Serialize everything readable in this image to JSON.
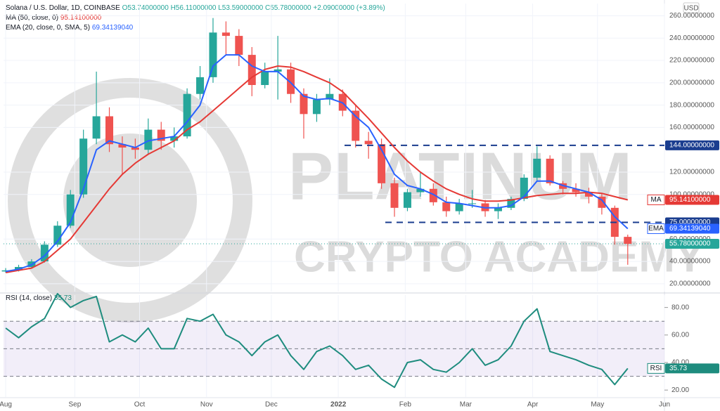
{
  "header": {
    "symbol": "Solana / U.S. Dollar, 1D, COINBASE",
    "ohlc": [
      "O53.74000000",
      "H56.11000000",
      "L53.59000000",
      "C55.78000000"
    ],
    "change": "+2.09000000 (+3.89%)",
    "currency": "USD"
  },
  "watermark": [
    "PLATINUM",
    "CRYPTO ACADEMY"
  ],
  "chart_data": [
    {
      "type": "candlestick",
      "x": [
        0,
        6,
        12,
        18,
        24,
        30,
        36,
        42,
        48,
        54,
        60,
        66,
        72,
        78,
        84,
        90,
        96,
        102,
        108,
        114,
        120,
        126,
        132,
        138,
        144,
        150,
        156,
        162,
        168,
        174,
        180,
        186,
        192,
        198,
        204,
        210,
        216,
        222,
        228,
        234,
        240,
        246,
        252,
        258,
        264,
        270,
        276,
        282,
        288
      ],
      "open": [
        31,
        32,
        35,
        40,
        55,
        72,
        100,
        150,
        170,
        145,
        142,
        140,
        158,
        148,
        152,
        190,
        205,
        245,
        242,
        225,
        198,
        210,
        212,
        190,
        172,
        185,
        190,
        175,
        148,
        145,
        110,
        88,
        102,
        105,
        93,
        85,
        92,
        92,
        85,
        88,
        96,
        115,
        132,
        110,
        105,
        102,
        98,
        88,
        62
      ],
      "high": [
        34,
        37,
        42,
        58,
        76,
        104,
        158,
        210,
        178,
        152,
        150,
        168,
        165,
        160,
        195,
        215,
        258,
        255,
        248,
        232,
        218,
        242,
        218,
        195,
        190,
        204,
        194,
        180,
        156,
        150,
        115,
        105,
        120,
        110,
        98,
        96,
        104,
        95,
        92,
        98,
        118,
        143,
        135,
        112,
        110,
        106,
        101,
        90,
        64
      ],
      "low": [
        30,
        31,
        34,
        39,
        53,
        70,
        97,
        145,
        138,
        118,
        132,
        136,
        140,
        142,
        150,
        185,
        200,
        225,
        215,
        188,
        195,
        185,
        182,
        150,
        165,
        180,
        170,
        142,
        132,
        105,
        80,
        85,
        98,
        90,
        80,
        82,
        88,
        80,
        78,
        86,
        94,
        112,
        108,
        100,
        98,
        92,
        82,
        55,
        37
      ],
      "close": [
        32,
        35,
        40,
        55,
        72,
        100,
        150,
        170,
        145,
        142,
        140,
        158,
        148,
        152,
        190,
        205,
        245,
        242,
        225,
        198,
        210,
        212,
        190,
        172,
        185,
        190,
        175,
        148,
        145,
        110,
        88,
        102,
        105,
        93,
        85,
        92,
        92,
        85,
        88,
        96,
        115,
        132,
        110,
        105,
        102,
        98,
        88,
        62,
        55.78
      ],
      "last_label": "55.78000000",
      "up_color": "#26a69a",
      "down_color": "#ef5350",
      "xlim": [
        -1,
        305
      ],
      "xticks": [
        {
          "value": 0,
          "label": "Aug"
        },
        {
          "value": 32,
          "label": "Sep"
        },
        {
          "value": 62,
          "label": "Oct"
        },
        {
          "value": 93,
          "label": "Nov"
        },
        {
          "value": 123,
          "label": "Dec"
        },
        {
          "value": 154,
          "label": "2022"
        },
        {
          "value": 185,
          "label": "Feb"
        },
        {
          "value": 213,
          "label": "Mar"
        },
        {
          "value": 244,
          "label": "Apr"
        },
        {
          "value": 274,
          "label": "May"
        },
        {
          "value": 305,
          "label": "Jun"
        }
      ],
      "ylim": [
        13,
        271
      ],
      "yticks": [
        {
          "value": 20,
          "label": "20.00000000"
        },
        {
          "value": 40,
          "label": "40.00000000"
        },
        {
          "value": 60,
          "label": "60.00000000"
        },
        {
          "value": 100,
          "label": "100.00000000"
        },
        {
          "value": 120,
          "label": "120.00000000"
        },
        {
          "value": 160,
          "label": "160.00000000"
        },
        {
          "value": 180,
          "label": "180.00000000"
        },
        {
          "value": 200,
          "label": "200.00000000"
        },
        {
          "value": 220,
          "label": "220.00000000"
        },
        {
          "value": 240,
          "label": "240.00000000"
        },
        {
          "value": 260,
          "label": "260.00000000"
        }
      ],
      "levels": [
        {
          "value": 144,
          "label": "144.00000000"
        },
        {
          "value": 75,
          "label": "75.00000000"
        }
      ],
      "level_color": "#1a3d8f",
      "series": [
        {
          "name": "MA (50, close, 0)",
          "tag": "MA",
          "color": "#e53935",
          "last_label": "95.14100000",
          "values": [
            30,
            32,
            34,
            40,
            50,
            60,
            75,
            90,
            105,
            118,
            128,
            136,
            142,
            148,
            158,
            165,
            175,
            185,
            195,
            205,
            212,
            215,
            214,
            210,
            205,
            200,
            192,
            180,
            168,
            155,
            142,
            130,
            120,
            112,
            105,
            100,
            96,
            94,
            94,
            95,
            97,
            99,
            100,
            101,
            101,
            102,
            101,
            98,
            95.141
          ]
        },
        {
          "name": "EMA (20, close, 0, SMA, 5)",
          "tag": "EMA",
          "color": "#2962ff",
          "last_label": "69.34139040",
          "values": [
            31,
            33,
            37,
            45,
            58,
            75,
            105,
            140,
            148,
            145,
            142,
            148,
            150,
            152,
            165,
            180,
            215,
            225,
            225,
            215,
            210,
            210,
            200,
            188,
            185,
            186,
            182,
            170,
            160,
            140,
            118,
            108,
            105,
            100,
            93,
            92,
            90,
            88,
            88,
            90,
            98,
            112,
            112,
            108,
            105,
            102,
            95,
            80,
            69.3413904
          ]
        }
      ]
    },
    {
      "type": "line",
      "ylim": [
        15,
        89
      ],
      "yticks": [
        {
          "value": 20,
          "label": "20.00"
        },
        {
          "value": 40,
          "label": "40.00"
        },
        {
          "value": 60,
          "label": "60.00"
        },
        {
          "value": 80,
          "label": "80.00"
        }
      ],
      "band": [
        30,
        70
      ],
      "levels": [
        30,
        50,
        70
      ],
      "series": [
        {
          "name": "RSI (14, close)",
          "tag": "RSI",
          "color": "#1e8c7e",
          "last_label": "35.73",
          "values": [
            65,
            58,
            66,
            72,
            90,
            80,
            85,
            88,
            55,
            60,
            55,
            65,
            50,
            50,
            72,
            70,
            75,
            60,
            55,
            45,
            55,
            60,
            45,
            35,
            48,
            52,
            45,
            35,
            38,
            28,
            22,
            40,
            42,
            35,
            33,
            40,
            50,
            38,
            42,
            52,
            70,
            79,
            48,
            45,
            42,
            38,
            35,
            24,
            35.73
          ]
        }
      ]
    }
  ]
}
